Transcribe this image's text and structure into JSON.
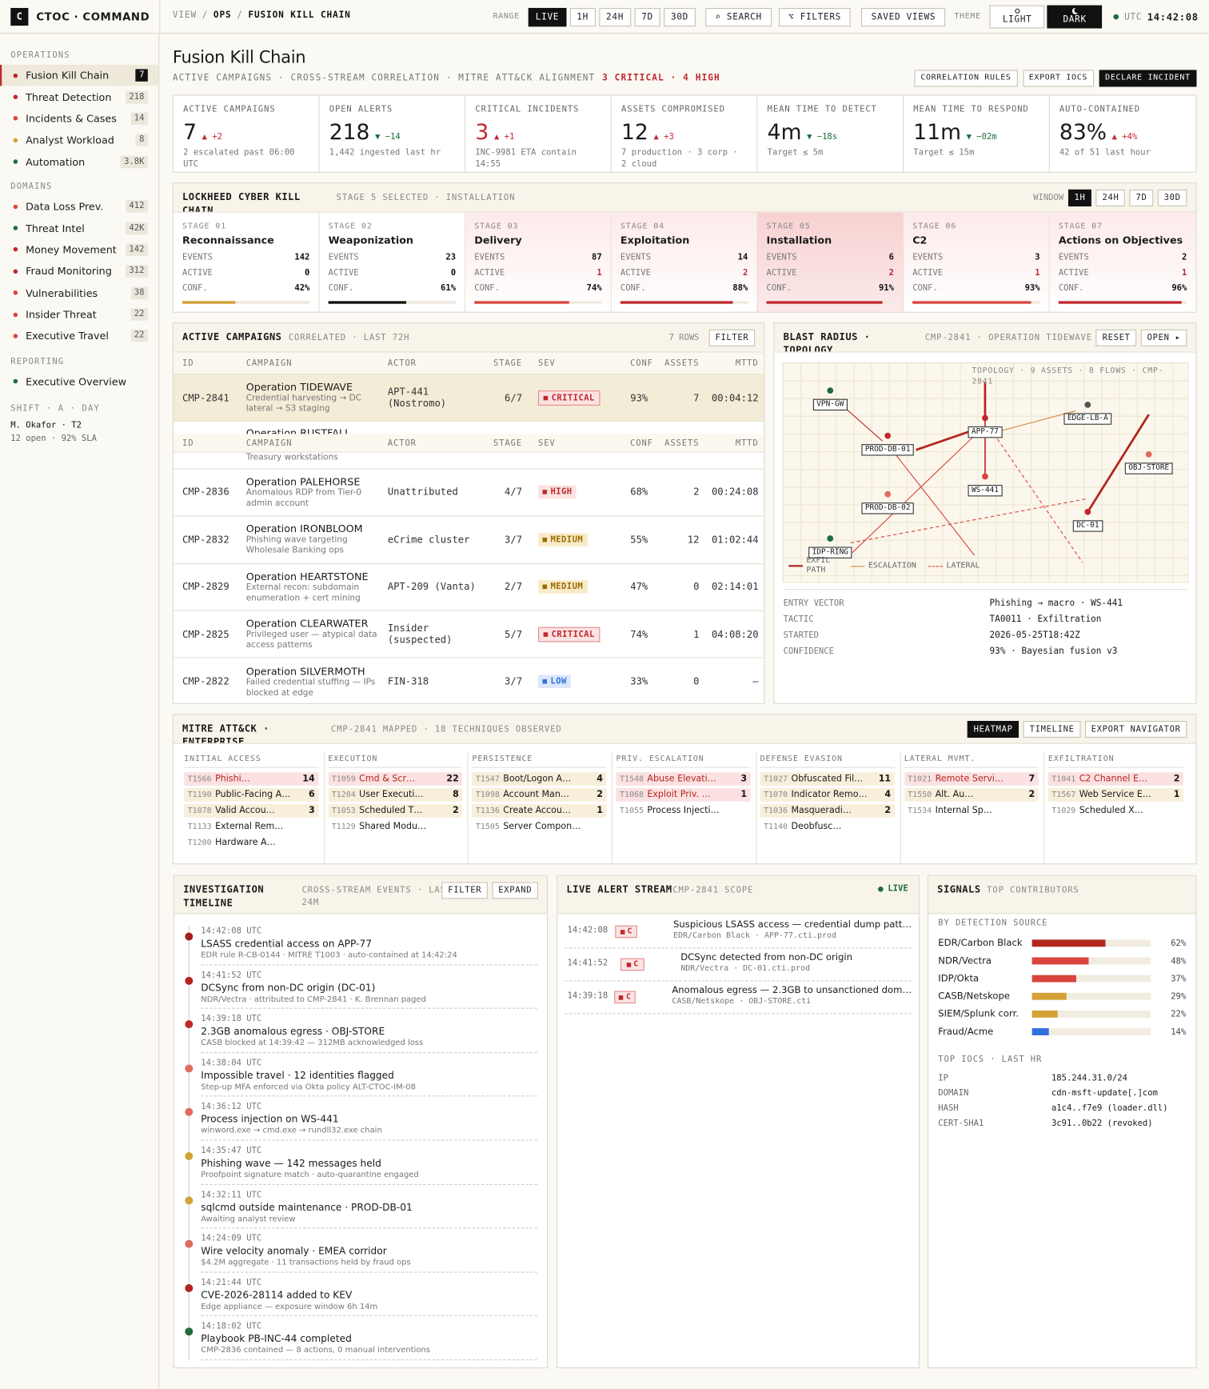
{
  "header": {
    "brand_icon": "C",
    "brand": "CTOC · COMMAND",
    "breadcrumb": [
      "VIEW",
      "OPS",
      "FUSION KILL CHAIN"
    ],
    "breadcrumb_sep": "/",
    "range_label": "RANGE",
    "ranges": [
      "LIVE",
      "1H",
      "24H",
      "7D",
      "30D"
    ],
    "range_active": 0,
    "search": "⌕ SEARCH",
    "filters": "⌥ FILTERS",
    "saved_views": "SAVED VIEWS",
    "theme_label": "THEME",
    "themes": [
      "LIGHT",
      "DARK"
    ],
    "theme_active": 1,
    "utc_label": "UTC",
    "time": "14:42:08"
  },
  "sidebar": {
    "sections": [
      {
        "title": "OPERATIONS",
        "items": [
          {
            "label": "Fusion Kill Chain",
            "count": "7",
            "dot": "#c0282d",
            "active": true
          },
          {
            "label": "Threat Detection",
            "count": "218",
            "dot": "#c0282d"
          },
          {
            "label": "Incidents & Cases",
            "count": "14",
            "dot": "#d9453d"
          },
          {
            "label": "Analyst Workload",
            "count": "8",
            "dot": "#d4a136"
          },
          {
            "label": "Automation",
            "count": "3.8K",
            "dot": "#1f6b3b"
          }
        ]
      },
      {
        "title": "DOMAINS",
        "items": [
          {
            "label": "Data Loss Prev.",
            "count": "412",
            "dot": "#d9453d"
          },
          {
            "label": "Threat Intel",
            "count": "42K",
            "dot": "#1f6b3b"
          },
          {
            "label": "Money Movement",
            "count": "142",
            "dot": "#c0282d"
          },
          {
            "label": "Fraud Monitoring",
            "count": "312",
            "dot": "#c0282d"
          },
          {
            "label": "Vulnerabilities",
            "count": "38",
            "dot": "#d9453d"
          },
          {
            "label": "Insider Threat",
            "count": "22",
            "dot": "#d9453d"
          },
          {
            "label": "Executive Travel",
            "count": "22",
            "dot": "#d9453d"
          }
        ]
      },
      {
        "title": "REPORTING",
        "items": [
          {
            "label": "Executive Overview",
            "dot": "#1f6b3b"
          }
        ]
      }
    ],
    "shift": {
      "title": "SHIFT · A · DAY",
      "operator": "M. Okafor · T2",
      "status": "12 open · 92% SLA"
    }
  },
  "page": {
    "title": "Fusion Kill Chain",
    "subtitle": "ACTIVE CAMPAIGNS · CROSS-STREAM CORRELATION · MITRE ATT&CK ALIGNMENT",
    "severity": "3 CRITICAL · 4 HIGH",
    "actions": [
      "CORRELATION RULES",
      "EXPORT IOCS",
      "DECLARE INCIDENT"
    ]
  },
  "kpis": [
    {
      "label": "ACTIVE CAMPAIGNS",
      "value": "7",
      "delta": "▲ +2",
      "tone": "bad",
      "note": "2 escalated past 06:00 UTC"
    },
    {
      "label": "OPEN ALERTS",
      "value": "218",
      "delta": "▼ −14",
      "tone": "good",
      "note": "1,442 ingested last hr"
    },
    {
      "label": "CRITICAL INCIDENTS",
      "value": "3",
      "value_tone": "bad",
      "delta": "▲ +1",
      "tone": "bad",
      "note": "INC-9981 ETA contain 14:55"
    },
    {
      "label": "ASSETS COMPROMISED",
      "value": "12",
      "delta": "▲ +3",
      "tone": "bad",
      "note": "7 production · 3 corp · 2 cloud"
    },
    {
      "label": "MEAN TIME TO DETECT",
      "value": "4m",
      "delta": "▼ −18s",
      "tone": "good",
      "note": "Target ≤ 5m"
    },
    {
      "label": "MEAN TIME TO RESPOND",
      "value": "11m",
      "delta": "▼ −02m",
      "tone": "good",
      "note": "Target ≤ 15m"
    },
    {
      "label": "AUTO-CONTAINED",
      "value": "83%",
      "delta": "▲ +4%",
      "tone": "bad",
      "note": "42 of 51 last hour"
    }
  ],
  "kill_chain": {
    "title": "LOCKHEED CYBER KILL CHAIN",
    "subtitle": "STAGE 5 SELECTED · INSTALLATION",
    "window_label": "WINDOW",
    "windows": [
      "1H",
      "24H",
      "7D",
      "30D"
    ],
    "window_active": 0,
    "row_labels": [
      "EVENTS",
      "ACTIVE",
      "CONF."
    ],
    "stages": [
      {
        "stage": "STAGE 01",
        "name": "Reconnaissance",
        "events": "142",
        "active": "0",
        "conf": 42,
        "conf_label": "42%",
        "bar_color": "#d4a136",
        "state": "normal"
      },
      {
        "stage": "STAGE 02",
        "name": "Weaponization",
        "events": "23",
        "active": "0",
        "conf": 61,
        "conf_label": "61%",
        "bar_color": "#111111",
        "state": "normal"
      },
      {
        "stage": "STAGE 03",
        "name": "Delivery",
        "events": "87",
        "active": "1",
        "conf": 74,
        "conf_label": "74%",
        "bar_color": "#d9453d",
        "state": "alert"
      },
      {
        "stage": "STAGE 04",
        "name": "Exploitation",
        "events": "14",
        "active": "2",
        "conf": 88,
        "conf_label": "88%",
        "bar_color": "#c0282d",
        "state": "alert"
      },
      {
        "stage": "STAGE 05",
        "name": "Installation",
        "events": "6",
        "active": "2",
        "conf": 91,
        "conf_label": "91%",
        "bar_color": "#c0282d",
        "state": "selected"
      },
      {
        "stage": "STAGE 06",
        "name": "C2",
        "events": "3",
        "active": "1",
        "conf": 93,
        "conf_label": "93%",
        "bar_color": "#d9453d",
        "state": "alert"
      },
      {
        "stage": "STAGE 07",
        "name": "Actions on Objectives",
        "events": "2",
        "active": "1",
        "conf": 96,
        "conf_label": "96%",
        "bar_color": "#c0282d",
        "state": "alert"
      }
    ]
  },
  "campaigns": {
    "title": "ACTIVE CAMPAIGNS",
    "subtitle": "CORRELATED · LAST 72H",
    "row_count": "7 ROWS",
    "filter": "FILTER",
    "columns": [
      "ID",
      "CAMPAIGN",
      "ACTOR",
      "STAGE",
      "SEV",
      "CONF",
      "ASSETS",
      "MTTD"
    ],
    "rows": [
      {
        "id": "CMP-2841",
        "name": "Operation TIDEWAVE",
        "desc": "Credential harvesting → DC lateral → S3 staging",
        "actor": "APT-441 (Nostromo)",
        "stage": "6/7",
        "sev": "CRITICAL",
        "conf": "93%",
        "assets": "7",
        "mttd": "00:04:12",
        "selected": true
      },
      {
        "name": "Operation RUSTFALL",
        "desc": "Treasury workstations",
        "partial": true
      },
      {
        "id": "CMP-2836",
        "name": "Operation PALEHORSE",
        "desc": "Anomalous RDP from Tier-0 admin account",
        "actor": "Unattributed",
        "stage": "4/7",
        "sev": "HIGH",
        "conf": "68%",
        "assets": "2",
        "mttd": "00:24:08"
      },
      {
        "id": "CMP-2832",
        "name": "Operation IRONBLOOM",
        "desc": "Phishing wave targeting Wholesale Banking ops",
        "actor": "eCrime cluster",
        "stage": "3/7",
        "sev": "MEDIUM",
        "conf": "55%",
        "assets": "12",
        "mttd": "01:02:44"
      },
      {
        "id": "CMP-2829",
        "name": "Operation HEARTSTONE",
        "desc": "External recon: subdomain enumeration + cert mining",
        "actor": "APT-209 (Vanta)",
        "stage": "2/7",
        "sev": "MEDIUM",
        "conf": "47%",
        "assets": "0",
        "mttd": "02:14:01"
      },
      {
        "id": "CMP-2825",
        "name": "Operation CLEARWATER",
        "desc": "Privileged user — atypical data access patterns",
        "actor": "Insider (suspected)",
        "stage": "5/7",
        "sev": "CRITICAL",
        "conf": "74%",
        "assets": "1",
        "mttd": "04:08:20"
      },
      {
        "id": "CMP-2822",
        "name": "Operation SILVERMOTH",
        "desc": "Failed credential stuffing — IPs blocked at edge",
        "actor": "FIN-318",
        "stage": "3/7",
        "sev": "LOW",
        "conf": "33%",
        "assets": "0",
        "mttd": "–"
      }
    ]
  },
  "blast_radius": {
    "title": "BLAST RADIUS · TOPOLOGY",
    "subtitle": "CMP-2841 · OPERATION TIDEWAVE",
    "buttons": [
      "RESET",
      "OPEN ▸"
    ],
    "caption": "TOPOLOGY · 9 ASSETS · 8 FLOWS · CMP-2841",
    "nodes": [
      {
        "label": "VPN-GW",
        "color": "#1f6b3b"
      },
      {
        "label": "APP-77",
        "color": "#c0282d"
      },
      {
        "label": "EDGE-LB-A",
        "color": "#555555"
      },
      {
        "label": "PROD-DB-01",
        "color": "#c0282d"
      },
      {
        "label": "OBJ-STORE",
        "color": "#e06b5e"
      },
      {
        "label": "WS-441",
        "color": "#d9453d"
      },
      {
        "label": "PROD-DB-02",
        "color": "#e06b5e"
      },
      {
        "label": "DC-01",
        "color": "#c0282d"
      },
      {
        "label": "IDP-RING",
        "color": "#1f6b3b"
      }
    ],
    "legend": [
      "EXFIL PATH",
      "ESCALATION",
      "LATERAL"
    ],
    "details": [
      {
        "key": "ENTRY VECTOR",
        "value": "Phishing → macro · WS-441"
      },
      {
        "key": "TACTIC",
        "value": "TA0011 · Exfiltration"
      },
      {
        "key": "STARTED",
        "value": "2026-05-25T18:42Z"
      },
      {
        "key": "CONFIDENCE",
        "value": "93% · Bayesian fusion v3"
      }
    ]
  },
  "mitre": {
    "title": "MITRE ATT&CK · ENTERPRISE",
    "subtitle": "CMP-2841 MAPPED · 18 TECHNIQUES OBSERVED",
    "buttons": [
      "HEATMAP",
      "TIMELINE",
      "EXPORT NAVIGATOR"
    ],
    "button_active": 0,
    "tactics": [
      {
        "name": "INITIAL ACCESS",
        "techniques": [
          {
            "id": "T1566",
            "name": "Phishi…",
            "count": "14",
            "level": "high"
          },
          {
            "id": "T1190",
            "name": "Public-Facing A…",
            "count": "6",
            "level": "med"
          },
          {
            "id": "T1078",
            "name": "Valid Accou…",
            "count": "3",
            "level": "med"
          },
          {
            "id": "T1133",
            "name": "External Rem…",
            "level": "none"
          },
          {
            "id": "T1200",
            "name": "Hardware A…",
            "level": "none"
          }
        ]
      },
      {
        "name": "EXECUTION",
        "techniques": [
          {
            "id": "T1059",
            "name": "Cmd & Scr…",
            "count": "22",
            "level": "high"
          },
          {
            "id": "T1204",
            "name": "User Executi…",
            "count": "8",
            "level": "med"
          },
          {
            "id": "T1053",
            "name": "Scheduled T…",
            "count": "2",
            "level": "med"
          },
          {
            "id": "T1129",
            "name": "Shared Modu…",
            "level": "none"
          }
        ]
      },
      {
        "name": "PERSISTENCE",
        "techniques": [
          {
            "id": "T1547",
            "name": "Boot/Logon A…",
            "count": "4",
            "level": "med"
          },
          {
            "id": "T1098",
            "name": "Account Man…",
            "count": "2",
            "level": "med"
          },
          {
            "id": "T1136",
            "name": "Create Accou…",
            "count": "1",
            "level": "med"
          },
          {
            "id": "T1505",
            "name": "Server Compon…",
            "level": "none"
          }
        ]
      },
      {
        "name": "PRIV. ESCALATION",
        "techniques": [
          {
            "id": "T1548",
            "name": "Abuse Elevati…",
            "count": "3",
            "level": "high"
          },
          {
            "id": "T1068",
            "name": "Exploit Priv. …",
            "count": "1",
            "level": "high"
          },
          {
            "id": "T1055",
            "name": "Process Injecti…",
            "level": "none"
          }
        ]
      },
      {
        "name": "DEFENSE EVASION",
        "techniques": [
          {
            "id": "T1027",
            "name": "Obfuscated Fil…",
            "count": "11",
            "level": "med"
          },
          {
            "id": "T1070",
            "name": "Indicator Remo…",
            "count": "4",
            "level": "med"
          },
          {
            "id": "T1036",
            "name": "Masqueradi…",
            "count": "2",
            "level": "med"
          },
          {
            "id": "T1140",
            "name": "Deobfusc…",
            "level": "none"
          }
        ]
      },
      {
        "name": "LATERAL MVMT.",
        "techniques": [
          {
            "id": "T1021",
            "name": "Remote Servi…",
            "count": "7",
            "level": "high"
          },
          {
            "id": "T1550",
            "name": "Alt. Au…",
            "count": "2",
            "level": "med"
          },
          {
            "id": "T1534",
            "name": "Internal Sp…",
            "level": "none"
          }
        ]
      },
      {
        "name": "EXFILTRATION",
        "techniques": [
          {
            "id": "T1041",
            "name": "C2 Channel E…",
            "count": "2",
            "level": "high"
          },
          {
            "id": "T1567",
            "name": "Web Service E…",
            "count": "1",
            "level": "med"
          },
          {
            "id": "T1029",
            "name": "Scheduled X…",
            "level": "none"
          }
        ]
      }
    ]
  },
  "timeline": {
    "title": "INVESTIGATION TIMELINE",
    "subtitle": "CROSS-STREAM EVENTS · LAST 24M",
    "buttons": [
      "FILTER",
      "EXPAND"
    ],
    "events": [
      {
        "time": "14:42:08 UTC",
        "title": "LSASS credential access on APP-77",
        "detail": "EDR rule R-CB-0144 · MITRE T1003 · auto-contained at 14:42:24",
        "color": "#a51d1d"
      },
      {
        "time": "14:41:52 UTC",
        "title": "DCSync from non-DC origin (DC-01)",
        "detail": "NDR/Vectra · attributed to CMP-2841 · K. Brennan paged",
        "color": "#b3261e"
      },
      {
        "time": "14:39:18 UTC",
        "title": "2.3GB anomalous egress · OBJ-STORE",
        "detail": "CASB blocked at 14:39:42 — 312MB acknowledged loss",
        "color": "#c0282d"
      },
      {
        "time": "14:38:04 UTC",
        "title": "Impossible travel · 12 identities flagged",
        "detail": "Step-up MFA enforced via Okta policy ALT-CTOC-IM-08",
        "color": "#e06b5e"
      },
      {
        "time": "14:36:12 UTC",
        "title": "Process injection on WS-441",
        "detail": "winword.exe → cmd.exe → rundll32.exe chain",
        "color": "#e06b5e"
      },
      {
        "time": "14:35:47 UTC",
        "title": "Phishing wave — 142 messages held",
        "detail": "Proofpoint signature match · auto-quarantine engaged",
        "color": "#d4a136"
      },
      {
        "time": "14:32:11 UTC",
        "title": "sqlcmd outside maintenance · PROD-DB-01",
        "detail": "Awaiting analyst review",
        "color": "#d4a136"
      },
      {
        "time": "14:24:09 UTC",
        "title": "Wire velocity anomaly · EMEA corridor",
        "detail": "$4.2M aggregate · 11 transactions held by fraud ops",
        "color": "#e06b5e"
      },
      {
        "time": "14:21:44 UTC",
        "title": "CVE-2026-28114 added to KEV",
        "detail": "Edge appliance — exposure window 6h 14m",
        "color": "#b3261e"
      },
      {
        "time": "14:18:02 UTC",
        "title": "Playbook PB-INC-44 completed",
        "detail": "CMP-2836 contained — 8 actions, 0 manual interventions",
        "color": "#1f6b3b"
      }
    ]
  },
  "live_alerts": {
    "title": "LIVE ALERT STREAM",
    "subtitle": "CMP-2841 SCOPE",
    "live": "LIVE",
    "alerts": [
      {
        "time": "14:42:08",
        "sev": "C",
        "title": "Suspicious LSASS access — credential dump patt…",
        "source": "EDR/Carbon Black · APP-77.cti.prod"
      },
      {
        "time": "14:41:52",
        "sev": "C",
        "title": "DCSync detected from non-DC origin",
        "source": "NDR/Vectra · DC-01.cti.prod"
      },
      {
        "time": "14:39:18",
        "sev": "C",
        "title": "Anomalous egress — 2.3GB to unsanctioned dom…",
        "source": "CASB/Netskope · OBJ-STORE.cti"
      }
    ]
  },
  "signals": {
    "title": "SIGNALS",
    "subtitle": "TOP CONTRIBUTORS",
    "sources_title": "BY DETECTION SOURCE",
    "sources": [
      {
        "name": "EDR/Carbon Black",
        "value": 62,
        "label": "62%",
        "color": "#b3261e"
      },
      {
        "name": "NDR/Vectra",
        "value": 48,
        "label": "48%",
        "color": "#d9453d"
      },
      {
        "name": "IDP/Okta",
        "value": 37,
        "label": "37%",
        "color": "#d9453d"
      },
      {
        "name": "CASB/Netskope",
        "value": 29,
        "label": "29%",
        "color": "#d4a136"
      },
      {
        "name": "SIEM/Splunk corr.",
        "value": 22,
        "label": "22%",
        "color": "#d4a136"
      },
      {
        "name": "Fraud/Acme",
        "value": 14,
        "label": "14%",
        "color": "#2f6fe0"
      }
    ],
    "iocs_title": "TOP IOCS · LAST HR",
    "iocs": [
      {
        "key": "IP",
        "value": "185.244.31.0/24"
      },
      {
        "key": "DOMAIN",
        "value": "cdn-msft-update[.]com"
      },
      {
        "key": "HASH",
        "value": "a1c4..f7e9 (loader.dll)"
      },
      {
        "key": "CERT-SHA1",
        "value": "3c91..0b22 (revoked)"
      }
    ]
  }
}
